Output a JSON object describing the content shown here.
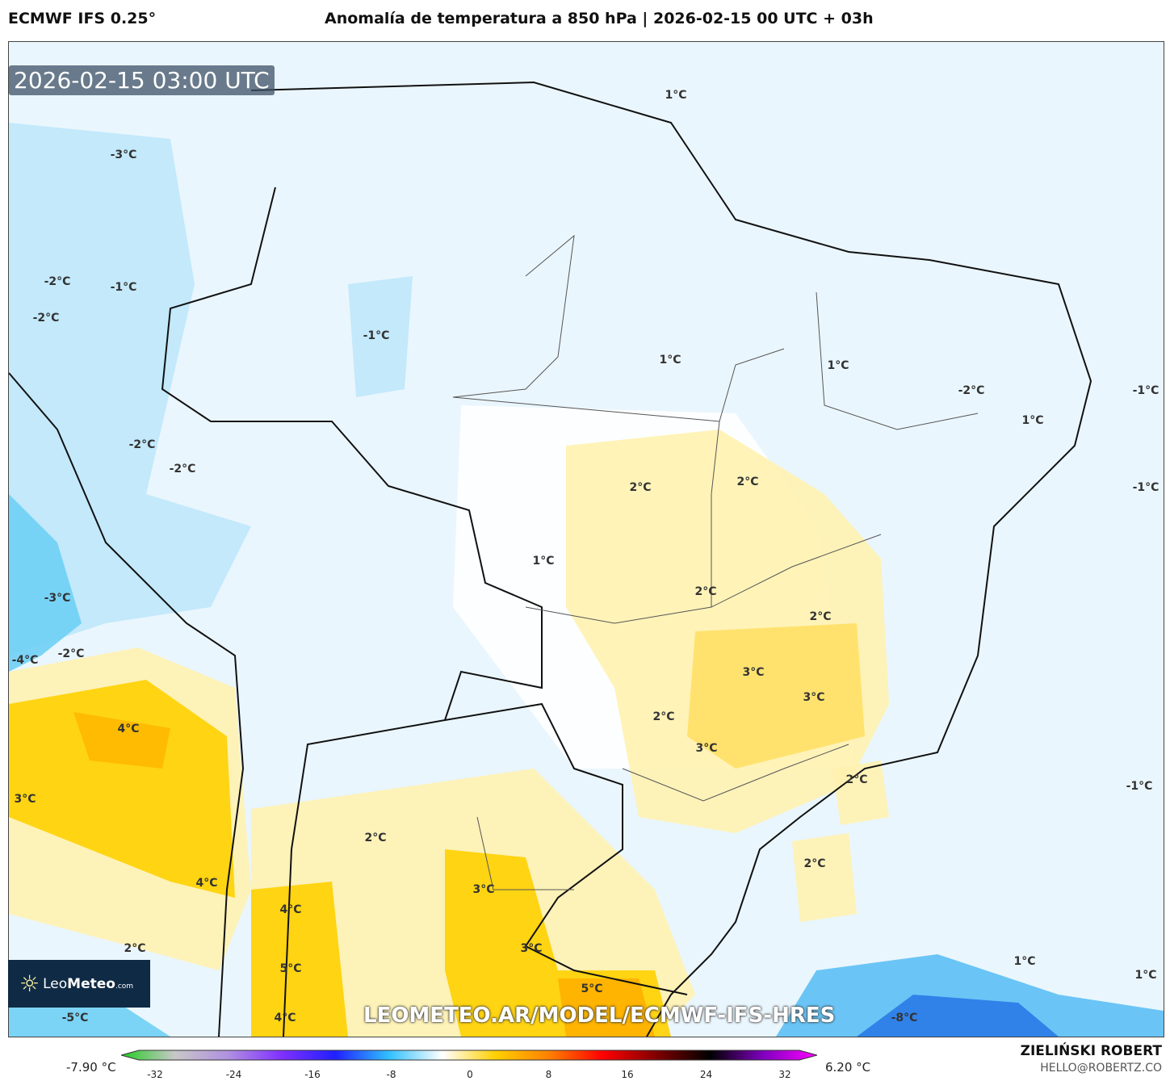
{
  "header": {
    "model": "ECMWF IFS 0.25°",
    "title": "Anomalía de temperatura a 850 hPa | 2026-02-15 00 UTC + 03h"
  },
  "map": {
    "timestamp": "2026-02-15 03:00 UTC",
    "url": "LEOMETEO.AR/MODEL/ECMWF-IFS-HRES",
    "logo": {
      "part1": "Leo",
      "part2": "Meteo",
      ".com": ".com",
      "icon": "sun-icon"
    },
    "contour_labels": [
      "-3°C",
      "1°C",
      "-2°C",
      "-1°C",
      "-2°C",
      "-1°C",
      "1°C",
      "1°C",
      "-2°C",
      "-1°C",
      "1°C",
      "-2°C",
      "-2°C",
      "2°C",
      "2°C",
      "-1°C",
      "1°C",
      "2°C",
      "-3°C",
      "2°C",
      "-4°C",
      "-2°C",
      "3°C",
      "3°C",
      "2°C",
      "4°C",
      "3°C",
      "2°C",
      "-1°C",
      "3°C",
      "2°C",
      "2°C",
      "4°C",
      "3°C",
      "4°C",
      "2°C",
      "3°C",
      "1°C",
      "5°C",
      "1°C",
      "5°C",
      "-5°C",
      "4°C",
      "-8°C"
    ]
  },
  "colorbar": {
    "min_label": "-7.90 °C",
    "max_label": "6.20 °C",
    "ticks": [
      "-32",
      "-24",
      "-16",
      "-8",
      "0",
      "8",
      "16",
      "24",
      "32"
    ],
    "colors": [
      "#22cc22",
      "#c8c8c8",
      "#b090e0",
      "#8030ff",
      "#2020ff",
      "#30c0ff",
      "#ffffff",
      "#ffd000",
      "#ff8000",
      "#ff0000",
      "#800000",
      "#000000",
      "#8000c0",
      "#ff00ff"
    ]
  },
  "credits": {
    "author": "ZIELIŃSKI ROBERT",
    "email": "HELLO@ROBERTZ.CO"
  }
}
